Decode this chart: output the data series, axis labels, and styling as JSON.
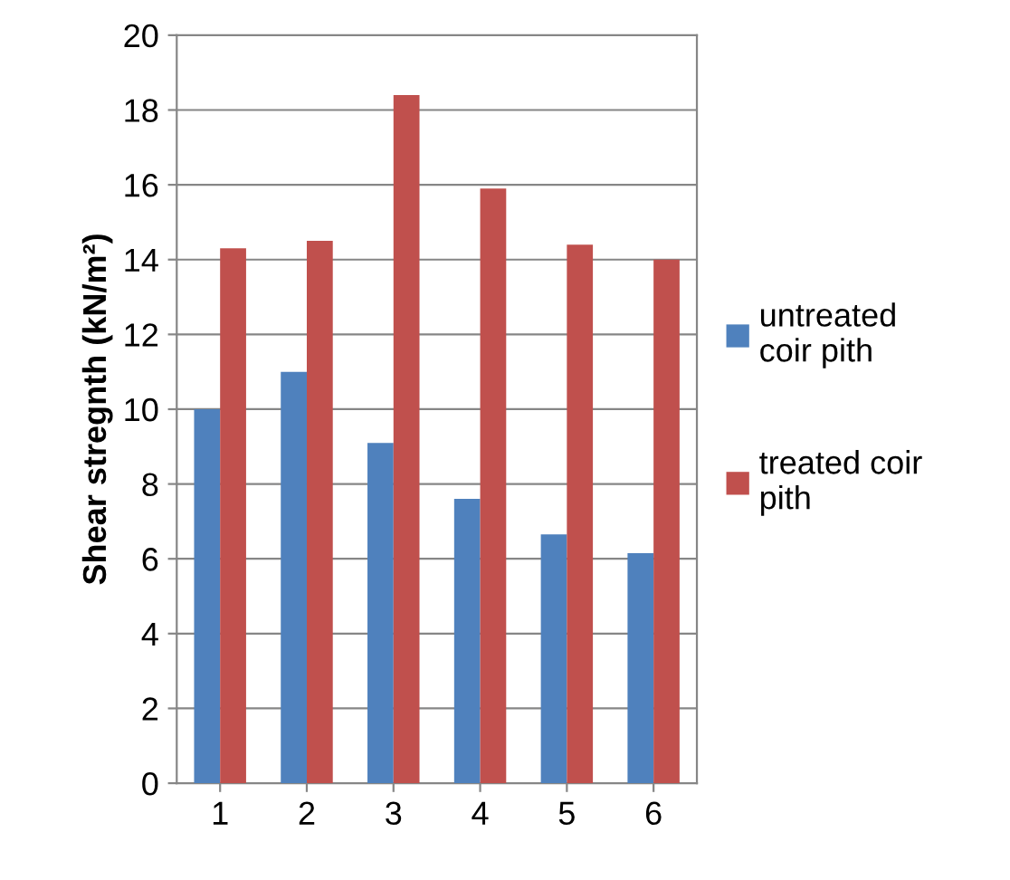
{
  "chart_data": {
    "type": "bar",
    "ylabel": "Shear stregnth (kN/m²)",
    "categories": [
      "1",
      "2",
      "3",
      "4",
      "5",
      "6"
    ],
    "series": [
      {
        "name": "untreated coir pith",
        "color": "#4f81bd",
        "values": [
          10.0,
          11.0,
          9.1,
          7.6,
          6.65,
          6.15
        ]
      },
      {
        "name": "treated coir pith",
        "color": "#c0504d",
        "values": [
          14.3,
          14.5,
          18.4,
          15.9,
          14.4,
          14.0
        ]
      }
    ],
    "ylim": [
      0,
      20
    ],
    "yticks": [
      0,
      2,
      4,
      6,
      8,
      10,
      12,
      14,
      16,
      18,
      20
    ],
    "grid": "y",
    "legend": "right"
  }
}
